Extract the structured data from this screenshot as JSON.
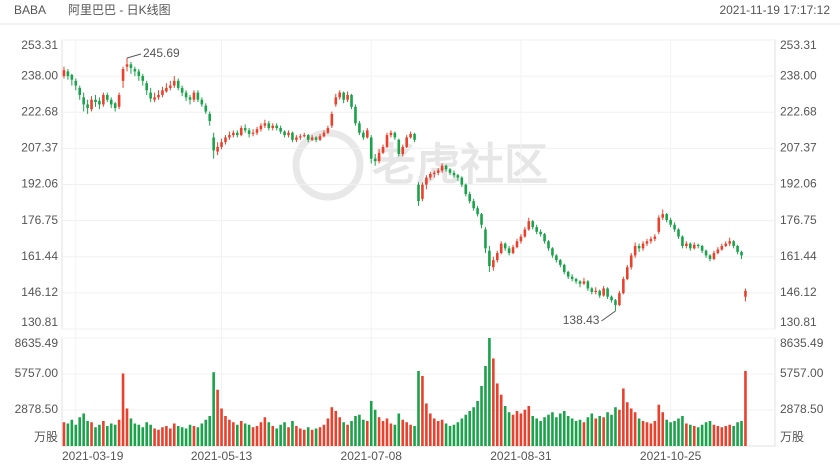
{
  "chart_data": {
    "type": "candlestick",
    "symbol": "BABA",
    "title": "阿里巴巴 - 日K线图",
    "timestamp": "2021-11-19 17:17:12",
    "watermark": "老虎社区",
    "up_color": "#e8412d",
    "down_color": "#1aa34a",
    "grid": true,
    "ylim": [
      130.81,
      253.31
    ],
    "yticks": [
      253.31,
      {
        "value": 238,
        "label": "238.00"
      },
      222.68,
      207.37,
      192.06,
      176.75,
      161.44,
      146.12,
      130.81
    ],
    "volume_ylim": [
      0,
      8635.49
    ],
    "volume_ticks": [
      8635.49,
      {
        "value": 5757,
        "label": "5757.00"
      },
      {
        "value": 2878.5,
        "label": "2878.50"
      }
    ],
    "volume_unit": "万股",
    "xlim": [
      -0.5,
      180.5
    ],
    "xticks": [
      {
        "value": 3,
        "label": "2021-03-19"
      },
      {
        "value": 40,
        "label": "2021-05-13"
      },
      {
        "value": 78,
        "label": "2021-07-08"
      },
      {
        "value": 116,
        "label": "2021-08-31"
      },
      {
        "value": 154,
        "label": "2021-10-25"
      }
    ],
    "annotations": [
      {
        "label": "245.69",
        "x": 16,
        "y": 245.69
      },
      {
        "label": "138.43",
        "x": 140,
        "y": 138.43
      }
    ],
    "candles": [
      [
        238,
        242,
        237,
        240.5,
        1900
      ],
      [
        240,
        241,
        236.5,
        238,
        1800
      ],
      [
        238.5,
        239,
        234,
        236.5,
        2100
      ],
      [
        236,
        237,
        232,
        234,
        1700
      ],
      [
        233,
        234,
        228,
        230,
        2300
      ],
      [
        229,
        231,
        223,
        226,
        2600
      ],
      [
        226,
        228,
        222,
        224.5,
        2000
      ],
      [
        224,
        229.5,
        223,
        228,
        1900
      ],
      [
        228,
        230,
        225,
        227,
        1500
      ],
      [
        227.5,
        229,
        224,
        226,
        1700
      ],
      [
        226,
        231,
        225,
        230,
        2000
      ],
      [
        230,
        231,
        227,
        228,
        1600
      ],
      [
        228,
        229,
        224.5,
        226,
        1800
      ],
      [
        226.5,
        227,
        223,
        224.5,
        1700
      ],
      [
        225,
        231,
        224,
        230,
        2100
      ],
      [
        236,
        242,
        233,
        241,
        5800
      ],
      [
        242,
        245.69,
        240,
        243,
        3000
      ],
      [
        243,
        244,
        239,
        241.5,
        2200
      ],
      [
        241,
        242,
        238,
        240,
        1800
      ],
      [
        240,
        241,
        236,
        238,
        1700
      ],
      [
        238,
        239,
        234,
        236,
        1500
      ],
      [
        235,
        236,
        230,
        232,
        1900
      ],
      [
        231,
        233,
        227,
        228.5,
        1700
      ],
      [
        228,
        231,
        227,
        229,
        1400
      ],
      [
        229,
        232,
        228,
        230,
        1300
      ],
      [
        230,
        233.5,
        229,
        232,
        1500
      ],
      [
        231.5,
        235,
        231,
        233,
        1600
      ],
      [
        233,
        236,
        232,
        234,
        1400
      ],
      [
        234,
        238,
        233,
        236,
        1800
      ],
      [
        236,
        237,
        232,
        233,
        1600
      ],
      [
        233,
        234,
        229.5,
        231,
        1500
      ],
      [
        231,
        232,
        227.5,
        229,
        1400
      ],
      [
        229,
        230,
        226,
        228,
        1700
      ],
      [
        228,
        232,
        227,
        231,
        1600
      ],
      [
        231,
        232,
        227,
        228,
        1500
      ],
      [
        228,
        229,
        225,
        226,
        1800
      ],
      [
        225.5,
        226.5,
        222,
        223,
        2100
      ],
      [
        222,
        223,
        217,
        219,
        2400
      ],
      [
        212,
        214,
        203,
        206.5,
        5900
      ],
      [
        206,
        210,
        204.5,
        208,
        4500
      ],
      [
        208,
        211.5,
        207,
        210,
        3000
      ],
      [
        210,
        213,
        209,
        212,
        2400
      ],
      [
        212,
        214.5,
        211,
        213,
        2100
      ],
      [
        213,
        215,
        212,
        214,
        1900
      ],
      [
        214,
        215,
        212,
        213,
        1700
      ],
      [
        213,
        217,
        212.5,
        216,
        2000
      ],
      [
        216,
        217.5,
        214,
        215,
        1800
      ],
      [
        215,
        216,
        212,
        213.5,
        1700
      ],
      [
        213.5,
        215.5,
        212.5,
        214,
        1500
      ],
      [
        214,
        216.5,
        213,
        215.5,
        1600
      ],
      [
        215.5,
        218,
        214.5,
        217,
        1900
      ],
      [
        217,
        219.5,
        216,
        218,
        2300
      ],
      [
        218,
        219,
        215,
        216,
        1900
      ],
      [
        216,
        218,
        215,
        217,
        1600
      ],
      [
        217,
        218,
        215,
        216,
        1400
      ],
      [
        216,
        217,
        213.5,
        214.5,
        1700
      ],
      [
        214.5,
        215,
        212,
        213,
        1900
      ],
      [
        213,
        215,
        212,
        214,
        1500
      ],
      [
        214,
        214.5,
        210,
        211,
        2000
      ],
      [
        211,
        213,
        210,
        212,
        1600
      ],
      [
        212,
        213.5,
        211,
        212.5,
        1400
      ],
      [
        212.5,
        214,
        212,
        213,
        1300
      ],
      [
        213,
        213.5,
        210,
        211,
        1500
      ],
      [
        211,
        213,
        210.5,
        212,
        1300
      ],
      [
        212,
        212.5,
        210,
        211,
        1400
      ],
      [
        211,
        213.5,
        210.5,
        212.5,
        1500
      ],
      [
        212.5,
        215,
        212,
        214,
        1700
      ],
      [
        214,
        217,
        213.5,
        216,
        2200
      ],
      [
        217,
        223,
        216,
        222,
        3100
      ],
      [
        226,
        230.5,
        225,
        229,
        2800
      ],
      [
        229,
        232,
        228,
        231,
        2300
      ],
      [
        231,
        231.5,
        226.5,
        228,
        1900
      ],
      [
        228,
        231.5,
        227,
        230,
        1700
      ],
      [
        230,
        230.5,
        224,
        225,
        2000
      ],
      [
        225,
        226,
        217,
        218,
        2400
      ],
      [
        218,
        219,
        213,
        214,
        2500
      ],
      [
        214,
        215,
        211,
        212,
        2100
      ],
      [
        212,
        216,
        211.5,
        215,
        2000
      ],
      [
        212,
        213,
        201,
        203,
        3600
      ],
      [
        203,
        205,
        200,
        202,
        2900
      ],
      [
        202,
        207,
        201,
        205.5,
        2300
      ],
      [
        205.5,
        209,
        205,
        208,
        2000
      ],
      [
        208,
        214,
        207.5,
        213,
        2200
      ],
      [
        213,
        215,
        212,
        214,
        1800
      ],
      [
        214,
        214.5,
        211,
        212,
        1700
      ],
      [
        211,
        211.5,
        204,
        205,
        2600
      ],
      [
        205,
        209,
        204,
        208,
        2100
      ],
      [
        208,
        213,
        207.5,
        212,
        1900
      ],
      [
        212,
        214.5,
        211.5,
        213.5,
        1700
      ],
      [
        213.5,
        214,
        210,
        211,
        1600
      ],
      [
        192,
        193,
        183,
        185,
        6000
      ],
      [
        186,
        193,
        185,
        192,
        5600
      ],
      [
        192,
        196,
        190,
        195,
        3400
      ],
      [
        195,
        197.5,
        194,
        196.5,
        2600
      ],
      [
        196.5,
        198,
        195,
        197,
        2200
      ],
      [
        197,
        199,
        196,
        198,
        2000
      ],
      [
        198,
        201,
        197,
        200,
        2100
      ],
      [
        200,
        200.5,
        197.5,
        198.5,
        1800
      ],
      [
        198.5,
        199,
        196,
        197,
        1600
      ],
      [
        197,
        198,
        195,
        196,
        1700
      ],
      [
        196,
        196.5,
        193.5,
        195,
        1900
      ],
      [
        195,
        195.5,
        191,
        192,
        2200
      ],
      [
        192,
        192.5,
        187,
        188,
        2500
      ],
      [
        188,
        189,
        184,
        185,
        2800
      ],
      [
        185,
        186,
        181,
        182,
        3100
      ],
      [
        182,
        183,
        178.5,
        179.5,
        3600
      ],
      [
        179.5,
        180,
        173.5,
        175,
        4800
      ],
      [
        173,
        174,
        163,
        165,
        6400
      ],
      [
        164,
        166,
        155,
        157.5,
        8635.49
      ],
      [
        157,
        161.5,
        155.5,
        160,
        7000
      ],
      [
        160,
        164,
        159,
        163,
        5000
      ],
      [
        163,
        168,
        162.5,
        167,
        4100
      ],
      [
        167,
        167.5,
        164,
        165,
        3200
      ],
      [
        165,
        166,
        162,
        163,
        2700
      ],
      [
        163,
        166.5,
        162.5,
        165.5,
        2500
      ],
      [
        165.5,
        169,
        165,
        168,
        2800
      ],
      [
        168,
        171,
        167,
        170,
        2600
      ],
      [
        170,
        174,
        169.5,
        173,
        2900
      ],
      [
        173,
        178,
        172.5,
        176.5,
        3200
      ],
      [
        176.5,
        177,
        173,
        174,
        2400
      ],
      [
        174,
        175,
        171,
        172,
        2200
      ],
      [
        172,
        173,
        170,
        171,
        2000
      ],
      [
        171,
        171.5,
        167,
        168,
        2300
      ],
      [
        168,
        168.5,
        164,
        165,
        2500
      ],
      [
        165,
        165.5,
        161,
        162,
        2700
      ],
      [
        162,
        162.5,
        159,
        160,
        2300
      ],
      [
        160,
        160.5,
        157,
        158,
        2600
      ],
      [
        158,
        158.5,
        154,
        155,
        2800
      ],
      [
        155,
        155.5,
        152,
        153,
        2400
      ],
      [
        153,
        154,
        151,
        152,
        2200
      ],
      [
        152,
        152.5,
        150,
        151,
        2000
      ],
      [
        151,
        151.5,
        148.5,
        150,
        2100
      ],
      [
        150,
        152.5,
        149.5,
        151,
        1900
      ],
      [
        151,
        151.5,
        147,
        148,
        2300
      ],
      [
        148,
        148.5,
        145.5,
        146.5,
        2600
      ],
      [
        146.5,
        148.5,
        145.5,
        147,
        2200
      ],
      [
        147,
        147.5,
        144,
        145,
        2400
      ],
      [
        145,
        149,
        144.5,
        148,
        2300
      ],
      [
        148,
        148.5,
        143.5,
        144.5,
        2700
      ],
      [
        144.5,
        145,
        142,
        143,
        2500
      ],
      [
        143,
        143.5,
        138.43,
        141,
        3100
      ],
      [
        141,
        147,
        140.5,
        146,
        2900
      ],
      [
        146,
        153,
        145.5,
        152,
        4600
      ],
      [
        152,
        158,
        151.5,
        157,
        3500
      ],
      [
        157,
        163,
        156,
        162,
        3000
      ],
      [
        162,
        167.5,
        161,
        166,
        2700
      ],
      [
        166,
        167,
        163.5,
        165,
        2200
      ],
      [
        165,
        168,
        164,
        167,
        2000
      ],
      [
        167,
        169,
        166,
        168,
        1900
      ],
      [
        168,
        170,
        167,
        169,
        1800
      ],
      [
        169,
        171,
        168,
        170,
        2000
      ],
      [
        172,
        179,
        171,
        178,
        3300
      ],
      [
        178,
        181.5,
        177,
        179.5,
        2700
      ],
      [
        179.5,
        180,
        176,
        177,
        2100
      ],
      [
        177,
        178,
        174,
        175,
        1900
      ],
      [
        175,
        176,
        172,
        173,
        2000
      ],
      [
        173,
        173.5,
        169,
        170,
        2200
      ],
      [
        170,
        170.5,
        165,
        166,
        2400
      ],
      [
        166,
        168,
        165,
        167,
        1800
      ],
      [
        167,
        167.5,
        164,
        165,
        1700
      ],
      [
        165,
        167.5,
        164.5,
        166.5,
        1600
      ],
      [
        166.5,
        167,
        165,
        166,
        1500
      ],
      [
        166,
        166.5,
        163,
        164,
        1700
      ],
      [
        164,
        164.5,
        161,
        162,
        1900
      ],
      [
        162,
        162.5,
        159.5,
        160.5,
        2000
      ],
      [
        160.5,
        164,
        160,
        163,
        1700
      ],
      [
        163,
        165.5,
        162.5,
        164.5,
        1600
      ],
      [
        164.5,
        167,
        164,
        166,
        1500
      ],
      [
        166,
        168,
        165.5,
        167,
        1600
      ],
      [
        167,
        169.5,
        166,
        168,
        1700
      ],
      [
        168,
        168.5,
        165,
        166,
        1600
      ],
      [
        166,
        166.5,
        162.5,
        163.5,
        1900
      ],
      [
        163.5,
        164,
        160.5,
        162,
        2000
      ],
      [
        144.5,
        148,
        142.5,
        147,
        6000
      ]
    ]
  }
}
